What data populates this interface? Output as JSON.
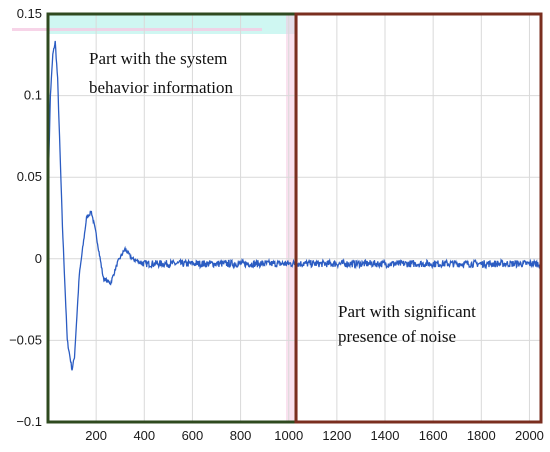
{
  "colors": {
    "signal": "#2b5cc2",
    "left_box": "#2f4a1f",
    "right_box": "#7a2e1f",
    "cyan_tint": "#cff7f2",
    "pink_tint": "#f5c9e2"
  },
  "annotations": {
    "left_line1": "Part with the system",
    "left_line2": "behavior information",
    "right_line1": "Part with significant",
    "right_line2": "presence of noise"
  },
  "chart_data": {
    "type": "line",
    "title": "",
    "xlabel": "",
    "ylabel": "",
    "xlim": [
      0,
      2048
    ],
    "ylim": [
      -0.1,
      0.15
    ],
    "x_ticks": [
      200,
      400,
      600,
      800,
      1000,
      1200,
      1400,
      1600,
      1800,
      2000
    ],
    "y_ticks": [
      -0.1,
      -0.05,
      0,
      0.05,
      0.1,
      0.15
    ],
    "x_tick_labels": [
      "200",
      "400",
      "600",
      "800",
      "1000",
      "1200",
      "1400",
      "1600",
      "1800",
      "2000"
    ],
    "y_tick_labels": [
      "−0.1",
      "−0.05",
      "0",
      "0.05",
      "0.1",
      "0.15"
    ],
    "grid": true,
    "regions": [
      {
        "name": "system behavior",
        "x_range": [
          0,
          1030
        ]
      },
      {
        "name": "noise",
        "x_range": [
          1030,
          2048
        ]
      }
    ],
    "series": [
      {
        "x": [
          0,
          10,
          20,
          30,
          40,
          60,
          80,
          100,
          110,
          130,
          160,
          180,
          200,
          230,
          260,
          290,
          320,
          350,
          400,
          500,
          700,
          1000,
          1500,
          2048
        ],
        "y": [
          0.04,
          0.1,
          0.125,
          0.133,
          0.11,
          0.02,
          -0.05,
          -0.068,
          -0.06,
          -0.01,
          0.025,
          0.029,
          0.015,
          -0.012,
          -0.015,
          -0.002,
          0.006,
          0.0,
          -0.003,
          -0.003,
          -0.003,
          -0.003,
          -0.003,
          -0.003
        ]
      }
    ]
  }
}
